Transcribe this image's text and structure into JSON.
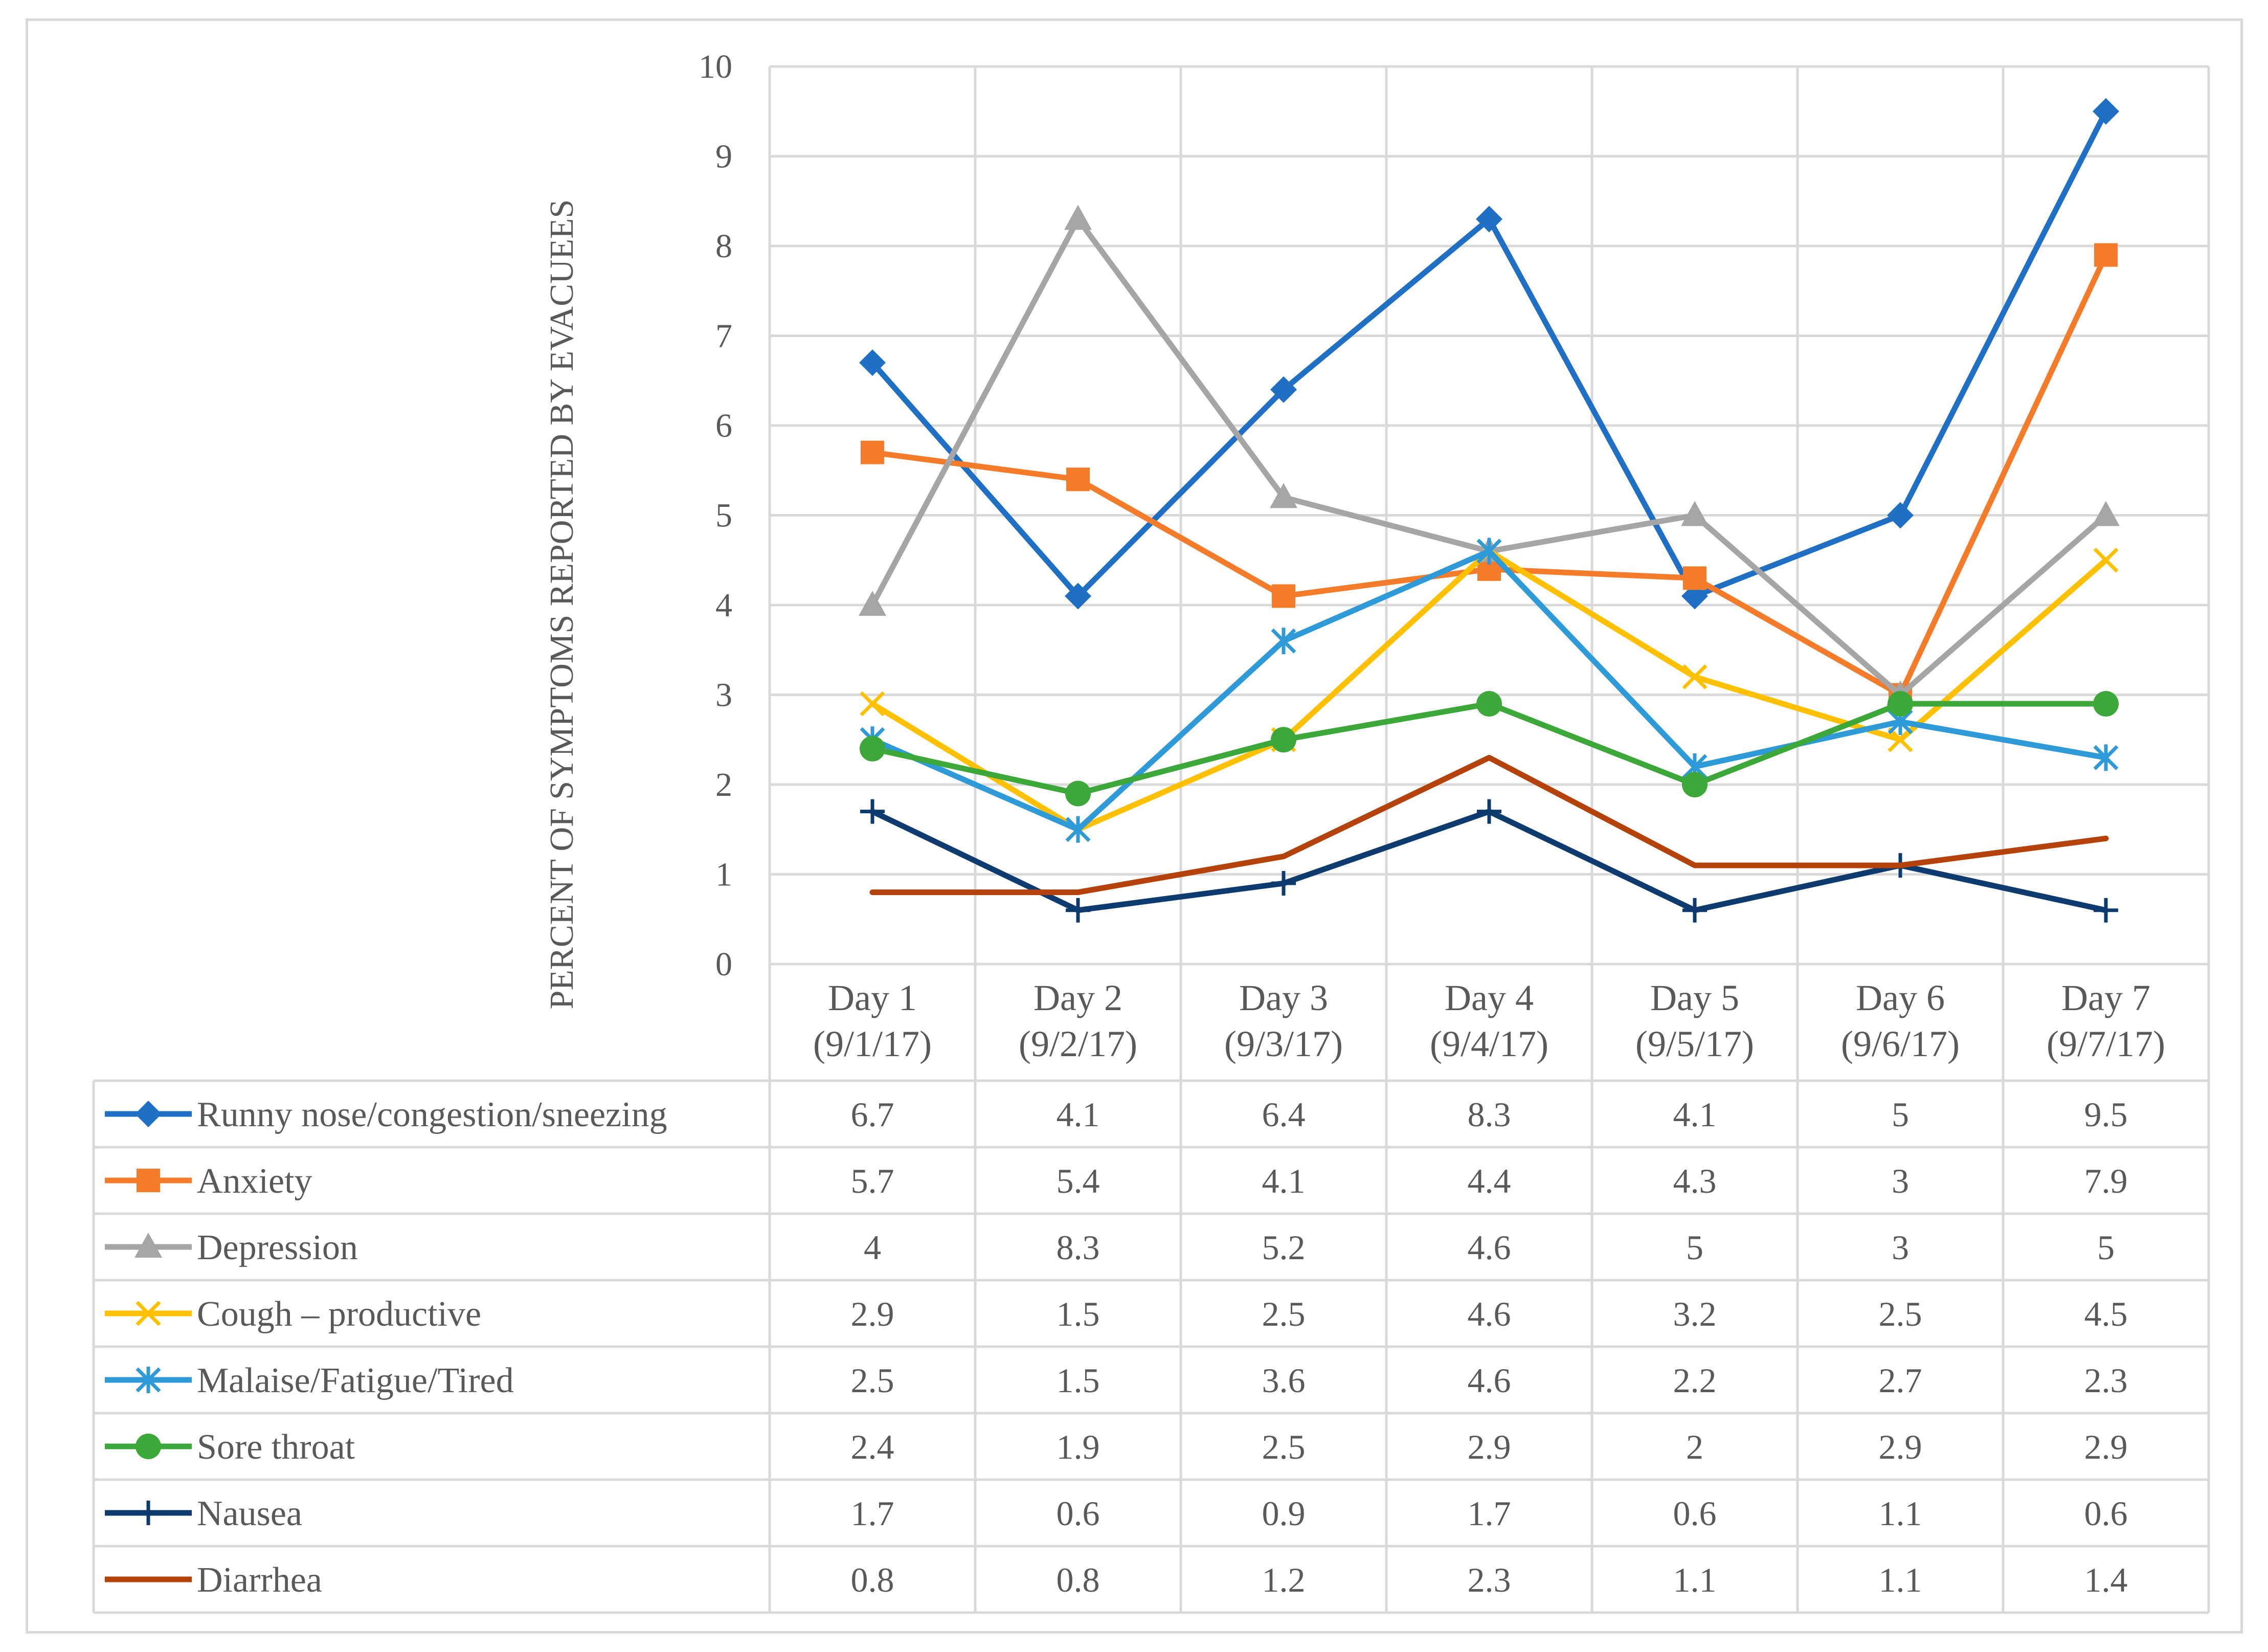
{
  "chart_data": {
    "type": "line",
    "title": "",
    "xlabel": "",
    "ylabel": "PERCENT OF SYMPTOMS REPORTED BY EVACUEES",
    "ylim": [
      0,
      10
    ],
    "yticks": [
      0,
      1,
      2,
      3,
      4,
      5,
      6,
      7,
      8,
      9,
      10
    ],
    "grid": true,
    "data_table": true,
    "categories": [
      [
        "Day 1",
        "(9/1/17)"
      ],
      [
        "Day 2",
        "(9/2/17)"
      ],
      [
        "Day 3",
        "(9/3/17)"
      ],
      [
        "Day 4",
        "(9/4/17)"
      ],
      [
        "Day 5",
        "(9/5/17)"
      ],
      [
        "Day 6",
        "(9/6/17)"
      ],
      [
        "Day 7",
        "(9/7/17)"
      ]
    ],
    "series": [
      {
        "name": "Runny nose/congestion/sneezing",
        "color": "#1f6fc5",
        "marker": "diamond",
        "values": [
          6.7,
          4.1,
          6.4,
          8.3,
          4.1,
          5,
          9.5
        ]
      },
      {
        "name": "Anxiety",
        "color": "#f47b2a",
        "marker": "square",
        "values": [
          5.7,
          5.4,
          4.1,
          4.4,
          4.3,
          3,
          7.9
        ]
      },
      {
        "name": "Depression",
        "color": "#a5a5a5",
        "marker": "triangle",
        "values": [
          4,
          8.3,
          5.2,
          4.6,
          5,
          3,
          5
        ]
      },
      {
        "name": "Cough – productive",
        "color": "#ffc000",
        "marker": "x",
        "values": [
          2.9,
          1.5,
          2.5,
          4.6,
          3.2,
          2.5,
          4.5
        ]
      },
      {
        "name": "Malaise/Fatigue/Tired",
        "color": "#2e9ad8",
        "marker": "star",
        "values": [
          2.5,
          1.5,
          3.6,
          4.6,
          2.2,
          2.7,
          2.3
        ]
      },
      {
        "name": "Sore throat",
        "color": "#3ca83a",
        "marker": "circle",
        "values": [
          2.4,
          1.9,
          2.5,
          2.9,
          2,
          2.9,
          2.9
        ]
      },
      {
        "name": "Nausea",
        "color": "#0d3b70",
        "marker": "plus",
        "values": [
          1.7,
          0.6,
          0.9,
          1.7,
          0.6,
          1.1,
          0.6
        ]
      },
      {
        "name": "Diarrhea",
        "color": "#b5410b",
        "marker": "none",
        "values": [
          0.8,
          0.8,
          1.2,
          2.3,
          1.1,
          1.1,
          1.4
        ]
      }
    ]
  }
}
